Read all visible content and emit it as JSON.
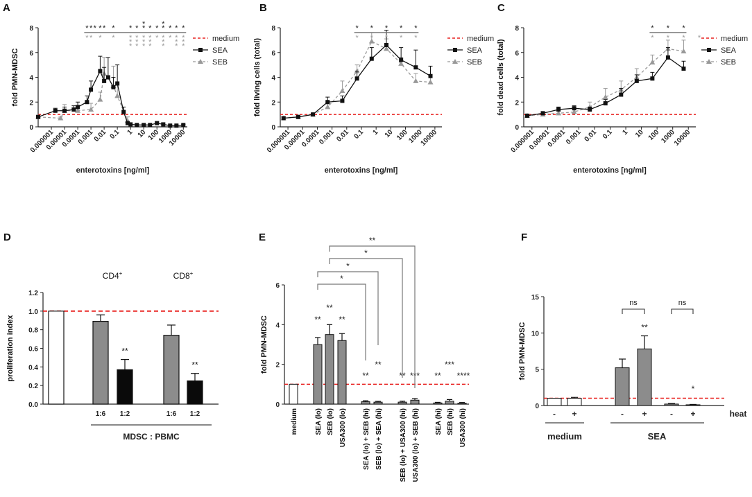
{
  "colors": {
    "sea": "#111111",
    "seb": "#999999",
    "medium": "#e8201e",
    "bar_gray": "#8c8c8c",
    "bar_black": "#0a0a0a",
    "sig_black": "#222222",
    "sig_gray": "#9a9a9a"
  },
  "chart_data": [
    {
      "panel": "A",
      "type": "line",
      "xlabel": "enterotoxins [ng/ml]",
      "ylabel": "fold PMN-MDSC",
      "xscale": "log",
      "xlim": [
        1e-07,
        20000
      ],
      "ylim": [
        0,
        8
      ],
      "xticks": [
        1e-06,
        1e-05,
        0.0001,
        0.001,
        0.01,
        0.1,
        1,
        10,
        100,
        1000,
        10000
      ],
      "xtick_labels": [
        "0.000001",
        "0.00001",
        "0.0001",
        "0.001",
        "0.01",
        "0.1",
        "1",
        "10",
        "100",
        "1000",
        "10000"
      ],
      "yticks": [
        0,
        2,
        4,
        6,
        8
      ],
      "legend": [
        "medium",
        "SEA",
        "SEB"
      ],
      "medium_line": 1,
      "series": [
        {
          "name": "SEA",
          "x": [
            1e-07,
            2e-06,
            1e-05,
            5e-05,
            0.0001,
            0.0005,
            0.001,
            0.005,
            0.01,
            0.02,
            0.05,
            0.1,
            0.3,
            0.6,
            1,
            3,
            10,
            30,
            100,
            300,
            1000,
            3000,
            10000
          ],
          "y": [
            0.8,
            1.3,
            1.3,
            1.4,
            1.6,
            2.0,
            3.0,
            4.5,
            3.7,
            4.0,
            3.2,
            3.5,
            1.2,
            0.3,
            0.2,
            0.15,
            0.15,
            0.15,
            0.3,
            0.2,
            0.1,
            0.1,
            0.15
          ],
          "err": [
            0.1,
            0.2,
            0.3,
            0.3,
            0.4,
            0.5,
            0.7,
            1.2,
            1.1,
            1.6,
            0.8,
            1.5,
            0.4,
            0.1,
            0.1,
            0.05,
            0.05,
            0.05,
            0.1,
            0.1,
            0.05,
            0.05,
            0.05
          ]
        },
        {
          "name": "SEB",
          "x": [
            1e-07,
            5e-06,
            1e-05,
            0.0001,
            0.001,
            0.005,
            0.01,
            0.05,
            0.1,
            0.6
          ],
          "y": [
            0.8,
            0.7,
            1.3,
            1.3,
            1.4,
            2.2,
            4.3,
            3.3,
            2.5,
            0.5
          ],
          "err": [
            0.1,
            0.1,
            0.5,
            0.3,
            0.5,
            0.6,
            1.3,
            1.6,
            1.0,
            0.3
          ]
        }
      ],
      "sig_rows": [
        {
          "color": "black",
          "x": [
            0.0005,
            0.001,
            0.002,
            0.005,
            0.01,
            0.05,
            1,
            3,
            10,
            30,
            100,
            300,
            1000,
            3000,
            10000
          ],
          "marks": [
            "*",
            "*",
            "*",
            "*",
            "*",
            "*",
            "*",
            "*",
            "**",
            "*",
            "*",
            "**",
            "*",
            "*",
            "*"
          ]
        },
        {
          "color": "gray",
          "x": [
            0.0005,
            0.001,
            0.005,
            0.05,
            1,
            3,
            10,
            30,
            100,
            300,
            1000,
            3000,
            10000
          ],
          "marks": [
            "*",
            "*",
            "*",
            "*",
            "***",
            "***",
            "***",
            "***",
            "*",
            "***",
            "*",
            "***",
            "***"
          ]
        }
      ]
    },
    {
      "panel": "B",
      "type": "line",
      "xlabel": "enterotoxins [ng/ml]",
      "ylabel": "fold living cells (total)",
      "xscale": "log",
      "xlim": [
        3e-07,
        30000
      ],
      "ylim": [
        0,
        8
      ],
      "xticks": [
        1e-06,
        1e-05,
        0.0001,
        0.001,
        0.01,
        0.1,
        1,
        10,
        100,
        1000,
        10000
      ],
      "xtick_labels": [
        "0.000001",
        "0.00001",
        "0.0001",
        "0.001",
        "0.01",
        "0.1",
        "1",
        "10",
        "100",
        "1000",
        "10000"
      ],
      "yticks": [
        0,
        2,
        4,
        6,
        8
      ],
      "legend": [
        "medium",
        "SEA",
        "SEB"
      ],
      "medium_line": 1,
      "series": [
        {
          "name": "SEA",
          "x": [
            5e-07,
            5e-06,
            5e-05,
            0.0005,
            0.005,
            0.05,
            0.5,
            5,
            50,
            500,
            5000
          ],
          "y": [
            0.7,
            0.8,
            1.0,
            2.0,
            2.1,
            3.9,
            5.5,
            6.6,
            5.4,
            4.8,
            4.1
          ],
          "err": [
            0.1,
            0.1,
            0.1,
            0.4,
            0.4,
            0.6,
            0.9,
            1.2,
            1.0,
            1.4,
            0.8
          ]
        },
        {
          "name": "SEB",
          "x": [
            5e-07,
            5e-06,
            5e-05,
            0.0005,
            0.005,
            0.05,
            0.5,
            5,
            50,
            500,
            5000
          ],
          "y": [
            0.7,
            0.8,
            1.0,
            1.6,
            2.9,
            4.5,
            6.9,
            6.3,
            5.1,
            3.7,
            3.6
          ],
          "err": [
            0.1,
            0.1,
            0.1,
            0.4,
            0.8,
            0.5,
            0.7,
            0.8,
            0.5,
            0.6,
            0.5
          ]
        }
      ],
      "sig_rows": [
        {
          "color": "black",
          "x": [
            0.05,
            0.5,
            5,
            50,
            500
          ],
          "marks": [
            "*",
            "*",
            "*",
            "*",
            "*"
          ]
        },
        {
          "color": "gray",
          "x": [
            0.05,
            0.5,
            5,
            50,
            500
          ],
          "marks": [
            "*",
            "*",
            "*",
            "*",
            "*"
          ]
        }
      ]
    },
    {
      "panel": "C",
      "type": "line",
      "xlabel": "enterotoxins [ng/ml]",
      "ylabel": "fold dead cells (total)",
      "xscale": "log",
      "xlim": [
        3e-07,
        30000
      ],
      "ylim": [
        0,
        8
      ],
      "xticks": [
        1e-06,
        1e-05,
        0.0001,
        0.001,
        0.01,
        0.1,
        1,
        10,
        100,
        1000,
        10000
      ],
      "xtick_labels": [
        "0.000001",
        "0.00001",
        "0.0001",
        "0.001",
        "0.01",
        "0.1",
        "1",
        "10",
        "100",
        "1000",
        "10000"
      ],
      "yticks": [
        0,
        2,
        4,
        6,
        8
      ],
      "legend": [
        "medium",
        "SEA",
        "SEB"
      ],
      "medium_line": 1,
      "series": [
        {
          "name": "SEA",
          "x": [
            5e-07,
            5e-06,
            5e-05,
            0.0005,
            0.005,
            0.05,
            0.5,
            5,
            50,
            500,
            5000
          ],
          "y": [
            0.9,
            1.1,
            1.4,
            1.5,
            1.4,
            1.9,
            2.6,
            3.7,
            3.9,
            5.6,
            4.7
          ],
          "err": [
            0.1,
            0.1,
            0.2,
            0.2,
            0.2,
            0.3,
            0.5,
            0.5,
            0.5,
            0.8,
            0.6
          ]
        },
        {
          "name": "SEB",
          "x": [
            5e-07,
            5e-06,
            5e-05,
            0.0005,
            0.005,
            0.05,
            0.5,
            5,
            50,
            500,
            5000
          ],
          "y": [
            0.9,
            1.0,
            1.1,
            1.2,
            1.6,
            2.4,
            3.0,
            4.0,
            5.2,
            6.3,
            6.1
          ],
          "err": [
            0.1,
            0.1,
            0.2,
            0.3,
            0.4,
            0.7,
            0.7,
            0.7,
            0.6,
            0.7,
            0.9
          ]
        }
      ],
      "sig_rows": [
        {
          "color": "black",
          "x": [
            50,
            500,
            5000
          ],
          "marks": [
            "*",
            "*",
            "*"
          ]
        },
        {
          "color": "gray",
          "x": [
            50,
            500,
            5000,
            50000
          ],
          "marks": [
            "*",
            "*",
            "*",
            "*"
          ]
        }
      ]
    },
    {
      "panel": "D",
      "type": "bar",
      "ylabel": "proliferation index",
      "ylim": [
        0,
        1.2
      ],
      "yticks": [
        0.0,
        0.2,
        0.4,
        0.6,
        0.8,
        1.0,
        1.2
      ],
      "ytick_labels": [
        "0.0",
        "0.2",
        "0.4",
        "0.6",
        "0.8",
        "1.0",
        "1.2"
      ],
      "reference_line": 1.0,
      "bars": [
        {
          "label": "",
          "value": 1.0,
          "err": 0,
          "fill": "white",
          "sig": ""
        },
        {
          "label": "1:6",
          "value": 0.89,
          "err": 0.07,
          "fill": "gray",
          "sig": ""
        },
        {
          "label": "1:2",
          "value": 0.37,
          "err": 0.11,
          "fill": "black",
          "sig": "**"
        },
        {
          "label": "1:6",
          "value": 0.74,
          "err": 0.11,
          "fill": "gray",
          "sig": ""
        },
        {
          "label": "1:2",
          "value": 0.25,
          "err": 0.08,
          "fill": "black",
          "sig": "**"
        }
      ],
      "group_labels": [
        {
          "text": "CD4",
          "sup": "+"
        },
        {
          "text": "CD8",
          "sup": "+"
        }
      ],
      "bottom_label": "MDSC : PBMC"
    },
    {
      "panel": "E",
      "type": "bar",
      "ylabel": "fold PMN-MDSC",
      "ylim": [
        0,
        6
      ],
      "yticks": [
        0,
        2,
        4,
        6
      ],
      "reference_line": 1,
      "categories": [
        "medium",
        "SEA (lo)",
        "SEB (lo)",
        "USA300 (lo)",
        "SEA (lo) + SEB (hi)",
        "SEB (lo) + SEA (hi)",
        "SEB (lo) + USA300 (hi)",
        "USA300 (lo) + SEB (hi)",
        "SEA (hi)",
        "SEB (hi)",
        "USA300 (hi)"
      ],
      "values": [
        1.0,
        3.0,
        3.5,
        3.2,
        0.12,
        0.1,
        0.1,
        0.2,
        0.06,
        0.15,
        0.05
      ],
      "errors": [
        0,
        0.35,
        0.5,
        0.35,
        0.05,
        0.04,
        0.05,
        0.08,
        0.03,
        0.08,
        0.03
      ],
      "fills": [
        "white",
        "gray",
        "gray",
        "gray",
        "gray",
        "gray",
        "gray",
        "gray",
        "gray",
        "gray",
        "gray"
      ],
      "sig": [
        "",
        "**",
        "**",
        "**",
        "**",
        "**",
        "**",
        "***",
        "**",
        "***",
        "****"
      ],
      "brackets": [
        {
          "label": "*",
          "from": 1,
          "to": 4
        },
        {
          "label": "*",
          "from": 1,
          "to": 5
        },
        {
          "label": "*",
          "from": 2,
          "to": 6
        },
        {
          "label": "**",
          "from": 2,
          "to": 7
        }
      ]
    },
    {
      "panel": "F",
      "type": "bar",
      "ylabel": "fold PMN-MDSC",
      "ylim": [
        0,
        15
      ],
      "yticks": [
        0,
        5,
        10,
        15
      ],
      "reference_line": 1,
      "values": [
        1.0,
        1.0,
        5.2,
        7.8,
        0.2,
        0.1
      ],
      "errors": [
        0,
        0.12,
        1.2,
        1.8,
        0.08,
        0.05
      ],
      "fills": [
        "white",
        "white",
        "gray",
        "gray",
        "gray",
        "gray"
      ],
      "heat": [
        "-",
        "+",
        "-",
        "+",
        "-",
        "+"
      ],
      "heat_label": "heat",
      "sig": [
        "",
        "",
        "",
        "**",
        "",
        "*"
      ],
      "brackets": [
        {
          "label": "ns",
          "from": 2,
          "to": 3
        },
        {
          "label": "ns",
          "from": 4,
          "to": 5
        }
      ],
      "groups": [
        {
          "label": "medium",
          "from": 0,
          "to": 1
        },
        {
          "label": "SEA",
          "from": 2,
          "to": 5
        }
      ]
    }
  ]
}
